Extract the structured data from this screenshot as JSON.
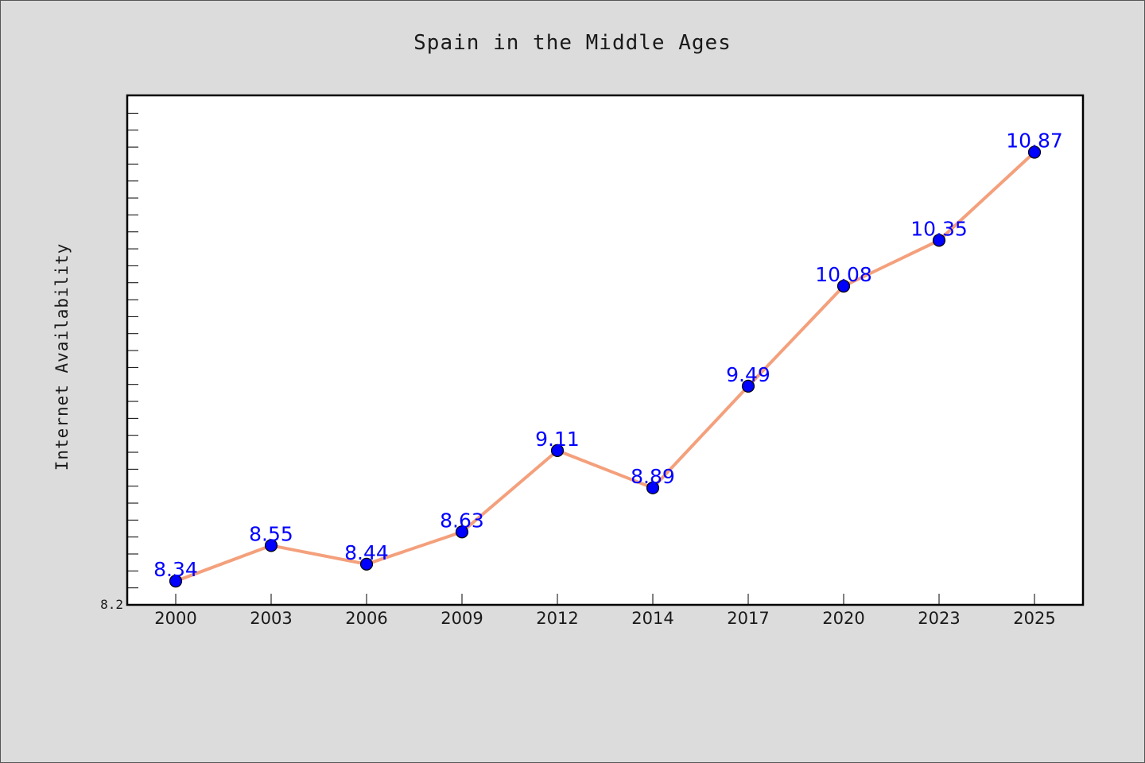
{
  "chart_data": {
    "type": "line",
    "title": "Spain in the Middle Ages",
    "xlabel": "",
    "ylabel": "Internet Availability",
    "categories": [
      "2000",
      "2003",
      "2006",
      "2009",
      "2012",
      "2014",
      "2017",
      "2020",
      "2023",
      "2025"
    ],
    "series": [
      {
        "values": [
          8.34,
          8.55,
          8.44,
          8.63,
          9.11,
          8.89,
          9.49,
          10.08,
          10.35,
          10.87
        ],
        "labels": [
          "8.34",
          "8.55",
          "8.44",
          "8.63",
          "9.11",
          "8.89",
          "9.49",
          "10.08",
          "10.35",
          "10.87"
        ],
        "line_color": "#f4a07c",
        "marker_color": "#0000ff",
        "label_color": "#0000ff"
      }
    ],
    "ylim": [
      8.2,
      11.2
    ],
    "y_tick_labels": [
      "8.2"
    ],
    "y_minor_step": 0.1,
    "grid": false,
    "legend": "none"
  }
}
